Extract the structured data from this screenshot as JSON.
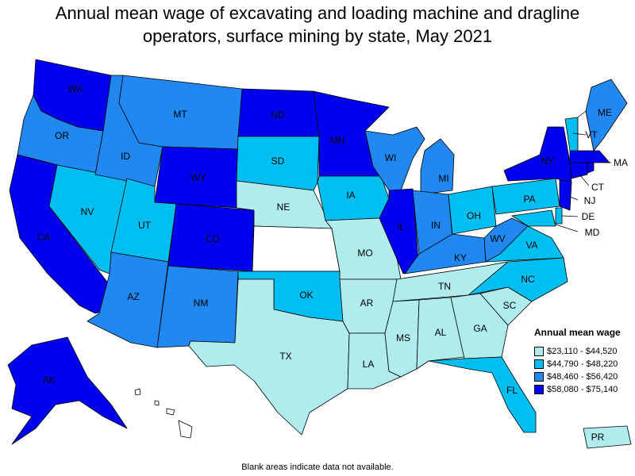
{
  "title_line1": "Annual mean wage of excavating and loading machine and dragline",
  "title_line2": "operators, surface mining by state, May 2021",
  "colors": {
    "bin1": "#b0ecee",
    "bin2": "#00bff0",
    "bin3": "#2187f1",
    "bin4": "#0000ef",
    "no_data": "#ffffff"
  },
  "legend": {
    "title": "Annual mean wage",
    "items": [
      {
        "label": "$23,110 - $44,520",
        "color": "#b0ecee"
      },
      {
        "label": "$44,790 - $48,220",
        "color": "#00bff0"
      },
      {
        "label": "$48,460 - $56,420",
        "color": "#2187f1"
      },
      {
        "label": "$58,080 - $75,140",
        "color": "#0000ef"
      }
    ]
  },
  "footnote": "Blank areas indicate data not available.",
  "states": {
    "WA": {
      "label": "WA",
      "bin": 4
    },
    "OR": {
      "label": "OR",
      "bin": 3
    },
    "CA": {
      "label": "CA",
      "bin": 4
    },
    "NV": {
      "label": "NV",
      "bin": 2
    },
    "ID": {
      "label": "ID",
      "bin": 3
    },
    "MT": {
      "label": "MT",
      "bin": 3
    },
    "WY": {
      "label": "WY",
      "bin": 4
    },
    "UT": {
      "label": "UT",
      "bin": 2
    },
    "AZ": {
      "label": "AZ",
      "bin": 3
    },
    "CO": {
      "label": "CO",
      "bin": 4
    },
    "NM": {
      "label": "NM",
      "bin": 3
    },
    "ND": {
      "label": "ND",
      "bin": 4
    },
    "SD": {
      "label": "SD",
      "bin": 2
    },
    "NE": {
      "label": "NE",
      "bin": 1
    },
    "KS": {
      "label": "",
      "bin": 0
    },
    "OK": {
      "label": "OK",
      "bin": 2
    },
    "TX": {
      "label": "TX",
      "bin": 1
    },
    "MN": {
      "label": "MN",
      "bin": 4
    },
    "IA": {
      "label": "IA",
      "bin": 2
    },
    "MO": {
      "label": "MO",
      "bin": 1
    },
    "AR": {
      "label": "AR",
      "bin": 1
    },
    "LA": {
      "label": "LA",
      "bin": 1
    },
    "WI": {
      "label": "WI",
      "bin": 3
    },
    "IL": {
      "label": "IL",
      "bin": 4
    },
    "MI": {
      "label": "MI",
      "bin": 3
    },
    "IN": {
      "label": "IN",
      "bin": 3
    },
    "OH": {
      "label": "OH",
      "bin": 2
    },
    "KY": {
      "label": "KY",
      "bin": 3
    },
    "TN": {
      "label": "TN",
      "bin": 1
    },
    "MS": {
      "label": "MS",
      "bin": 1
    },
    "AL": {
      "label": "AL",
      "bin": 1
    },
    "GA": {
      "label": "GA",
      "bin": 1
    },
    "FL": {
      "label": "FL",
      "bin": 2
    },
    "SC": {
      "label": "SC",
      "bin": 1
    },
    "NC": {
      "label": "NC",
      "bin": 2
    },
    "VA": {
      "label": "VA",
      "bin": 2
    },
    "WV": {
      "label": "WV",
      "bin": 3
    },
    "PA": {
      "label": "PA",
      "bin": 2
    },
    "NY": {
      "label": "NY",
      "bin": 4
    },
    "VT": {
      "label": "VT",
      "bin": 2
    },
    "NH": {
      "label": "",
      "bin": 0
    },
    "ME": {
      "label": "ME",
      "bin": 3
    },
    "MA": {
      "label": "MA",
      "bin": 4
    },
    "CT": {
      "label": "CT",
      "bin": 4
    },
    "RI": {
      "label": "",
      "bin": 4
    },
    "NJ": {
      "label": "NJ",
      "bin": 4
    },
    "DE": {
      "label": "DE",
      "bin": 2
    },
    "MD": {
      "label": "MD",
      "bin": 2
    },
    "AK": {
      "label": "AK",
      "bin": 4
    },
    "HI": {
      "label": "",
      "bin": 0
    },
    "PR": {
      "label": "PR",
      "bin": 1
    }
  }
}
